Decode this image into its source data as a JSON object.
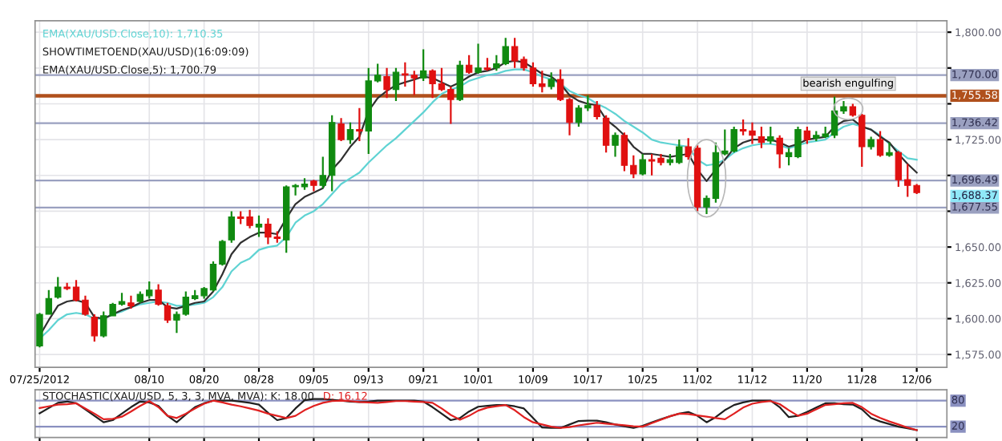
{
  "chart_data": [
    {
      "type": "candlestick",
      "categories": [
        "07/25/2012",
        null,
        null,
        null,
        null,
        null,
        null,
        null,
        null,
        null,
        null,
        null,
        "08/10",
        null,
        null,
        null,
        null,
        null,
        "08/20",
        null,
        null,
        null,
        null,
        null,
        "08/28",
        null,
        null,
        null,
        null,
        null,
        "09/05",
        null,
        null,
        null,
        null,
        null,
        "09/13",
        null,
        null,
        null,
        null,
        null,
        "09/21",
        null,
        null,
        null,
        null,
        null,
        "10/01",
        null,
        null,
        null,
        null,
        null,
        "10/09",
        null,
        null,
        null,
        null,
        null,
        "10/17",
        null,
        null,
        null,
        null,
        null,
        "10/25",
        null,
        null,
        null,
        null,
        null,
        "11/02",
        null,
        null,
        null,
        null,
        null,
        "11/12",
        null,
        null,
        null,
        null,
        null,
        "11/20",
        null,
        null,
        null,
        null,
        null,
        "11/28",
        null,
        null,
        null,
        null,
        null,
        "12/06"
      ],
      "ohlc": [
        [
          1581,
          1604,
          1580,
          1603
        ],
        [
          1603,
          1620,
          1603,
          1614
        ],
        [
          1615,
          1629,
          1614,
          1622
        ],
        [
          1622,
          1625,
          1620,
          1621
        ],
        [
          1622,
          1627,
          1612,
          1613
        ],
        [
          1613,
          1616,
          1602,
          1603
        ],
        [
          1601,
          1603,
          1584,
          1588
        ],
        [
          1588,
          1605,
          1587,
          1602
        ],
        [
          1602,
          1611,
          1602,
          1610
        ],
        [
          1610,
          1618,
          1609,
          1612
        ],
        [
          1611,
          1616,
          1607,
          1609
        ],
        [
          1612,
          1619,
          1611,
          1617
        ],
        [
          1616,
          1626,
          1614,
          1620
        ],
        [
          1620,
          1624,
          1609,
          1610
        ],
        [
          1609,
          1611,
          1597,
          1599
        ],
        [
          1599,
          1605,
          1590,
          1603
        ],
        [
          1603,
          1619,
          1602,
          1615
        ],
        [
          1614,
          1620,
          1613,
          1616
        ],
        [
          1616,
          1622,
          1614,
          1621
        ],
        [
          1620,
          1640,
          1619,
          1638
        ],
        [
          1638,
          1655,
          1637,
          1654
        ],
        [
          1655,
          1675,
          1653,
          1671
        ],
        [
          1671,
          1675,
          1666,
          1670
        ],
        [
          1671,
          1676,
          1663,
          1665
        ],
        [
          1664,
          1672,
          1657,
          1666
        ],
        [
          1666,
          1670,
          1652,
          1657
        ],
        [
          1657,
          1661,
          1653,
          1656
        ],
        [
          1655,
          1693,
          1646,
          1692
        ],
        [
          1692,
          1694,
          1686,
          1693
        ],
        [
          1692,
          1698,
          1690,
          1694
        ],
        [
          1696,
          1697,
          1689,
          1693
        ],
        [
          1693,
          1713,
          1691,
          1700
        ],
        [
          1700,
          1742,
          1689,
          1737
        ],
        [
          1736,
          1740,
          1724,
          1725
        ],
        [
          1725,
          1737,
          1722,
          1732
        ],
        [
          1732,
          1747,
          1724,
          1731
        ],
        [
          1731,
          1775,
          1715,
          1766
        ],
        [
          1766,
          1778,
          1765,
          1770
        ],
        [
          1769,
          1775,
          1754,
          1760
        ],
        [
          1760,
          1775,
          1752,
          1772
        ],
        [
          1771,
          1779,
          1762,
          1770
        ],
        [
          1770,
          1773,
          1756,
          1768
        ],
        [
          1768,
          1788,
          1766,
          1773
        ],
        [
          1773,
          1774,
          1754,
          1764
        ],
        [
          1764,
          1775,
          1759,
          1760
        ],
        [
          1760,
          1762,
          1736,
          1753
        ],
        [
          1753,
          1780,
          1752,
          1777
        ],
        [
          1777,
          1784,
          1771,
          1772
        ],
        [
          1772,
          1792,
          1771,
          1775
        ],
        [
          1775,
          1782,
          1773,
          1774
        ],
        [
          1775,
          1784,
          1773,
          1778
        ],
        [
          1778,
          1796,
          1777,
          1790
        ],
        [
          1790,
          1796,
          1775,
          1780
        ],
        [
          1781,
          1783,
          1773,
          1775
        ],
        [
          1775,
          1779,
          1762,
          1764
        ],
        [
          1764,
          1773,
          1758,
          1762
        ],
        [
          1762,
          1772,
          1760,
          1767
        ],
        [
          1767,
          1774,
          1752,
          1753
        ],
        [
          1753,
          1754,
          1728,
          1737
        ],
        [
          1737,
          1749,
          1734,
          1747
        ],
        [
          1747,
          1756,
          1745,
          1749
        ],
        [
          1749,
          1752,
          1739,
          1741
        ],
        [
          1740,
          1742,
          1716,
          1721
        ],
        [
          1721,
          1730,
          1713,
          1728
        ],
        [
          1728,
          1730,
          1703,
          1707
        ],
        [
          1707,
          1714,
          1698,
          1701
        ],
        [
          1701,
          1715,
          1700,
          1711
        ],
        [
          1711,
          1715,
          1700,
          1710
        ],
        [
          1712,
          1715,
          1707,
          1709
        ],
        [
          1709,
          1715,
          1707,
          1711
        ],
        [
          1709,
          1725,
          1708,
          1720
        ],
        [
          1720,
          1726,
          1711,
          1713
        ],
        [
          1719,
          1721,
          1675,
          1678
        ],
        [
          1678,
          1686,
          1673,
          1684
        ],
        [
          1684,
          1723,
          1681,
          1716
        ],
        [
          1715,
          1732,
          1714,
          1717
        ],
        [
          1717,
          1734,
          1716,
          1732
        ],
        [
          1732,
          1739,
          1728,
          1731
        ],
        [
          1731,
          1737,
          1722,
          1728
        ],
        [
          1727,
          1734,
          1719,
          1723
        ],
        [
          1724,
          1734,
          1722,
          1727
        ],
        [
          1726,
          1728,
          1705,
          1715
        ],
        [
          1713,
          1719,
          1707,
          1716
        ],
        [
          1713,
          1734,
          1712,
          1732
        ],
        [
          1731,
          1734,
          1722,
          1725
        ],
        [
          1726,
          1731,
          1724,
          1728
        ],
        [
          1727,
          1734,
          1726,
          1729
        ],
        [
          1728,
          1755,
          1726,
          1745
        ],
        [
          1745,
          1752,
          1743,
          1748
        ],
        [
          1748,
          1750,
          1741,
          1742
        ],
        [
          1742,
          1743,
          1706,
          1720
        ],
        [
          1720,
          1727,
          1718,
          1725
        ],
        [
          1725,
          1731,
          1713,
          1714
        ],
        [
          1714,
          1723,
          1713,
          1716
        ],
        [
          1716,
          1717,
          1692,
          1697
        ],
        [
          1697,
          1708,
          1685,
          1693
        ],
        [
          1693,
          1694,
          1687,
          1688
        ]
      ],
      "colors": [
        "#108a10",
        "#108a10",
        "#108a10",
        "#e01010",
        "#e01010",
        "#e01010",
        "#e01010",
        "#108a10",
        "#108a10",
        "#108a10",
        "#e01010",
        "#108a10",
        "#108a10",
        "#e01010",
        "#e01010",
        "#108a10",
        "#108a10",
        "#108a10",
        "#108a10",
        "#108a10",
        "#108a10",
        "#108a10",
        "#e01010",
        "#e01010",
        "#108a10",
        "#e01010",
        "#e01010",
        "#108a10",
        "#108a10",
        "#108a10",
        "#e01010",
        "#108a10",
        "#108a10",
        "#e01010",
        "#108a10",
        "#e01010",
        "#108a10",
        "#108a10",
        "#e01010",
        "#108a10",
        "#e01010",
        "#e01010",
        "#108a10",
        "#e01010",
        "#e01010",
        "#e01010",
        "#108a10",
        "#e01010",
        "#108a10",
        "#e01010",
        "#108a10",
        "#108a10",
        "#e01010",
        "#e01010",
        "#e01010",
        "#e01010",
        "#108a10",
        "#e01010",
        "#e01010",
        "#108a10",
        "#108a10",
        "#e01010",
        "#e01010",
        "#108a10",
        "#e01010",
        "#e01010",
        "#108a10",
        "#e01010",
        "#e01010",
        "#108a10",
        "#108a10",
        "#e01010",
        "#e01010",
        "#108a10",
        "#108a10",
        "#108a10",
        "#108a10",
        "#e01010",
        "#e01010",
        "#e01010",
        "#108a10",
        "#e01010",
        "#108a10",
        "#108a10",
        "#e01010",
        "#108a10",
        "#108a10",
        "#108a10",
        "#108a10",
        "#e01010",
        "#e01010",
        "#108a10",
        "#e01010",
        "#108a10",
        "#e01010",
        "#e01010",
        "#e01010"
      ],
      "series": [
        {
          "type": "line",
          "name": "EMA(XAU/USD.Close,10): 1,710.35",
          "color": "#5fd3d3",
          "values": [
            1586,
            1592,
            1599,
            1603,
            1604,
            1603,
            1600,
            1600,
            1603,
            1605,
            1608,
            1610,
            1611,
            1612,
            1611,
            1609,
            1609,
            1610,
            1611,
            1615,
            1622,
            1633,
            1639,
            1642,
            1648,
            1650,
            1651,
            1657,
            1667,
            1672,
            1675,
            1680,
            1687,
            1694,
            1698,
            1702,
            1709,
            1715,
            1721,
            1726,
            1732,
            1738,
            1744,
            1751,
            1757,
            1760,
            1762,
            1766,
            1768,
            1770,
            1771,
            1773,
            1774,
            1774,
            1772,
            1769,
            1767,
            1764,
            1759,
            1756,
            1754,
            1750,
            1747,
            1743,
            1738,
            1734,
            1730,
            1725,
            1723,
            1722,
            1721,
            1720,
            1711,
            1707,
            1708,
            1711,
            1716,
            1719,
            1721,
            1722,
            1722,
            1721,
            1719,
            1721,
            1723,
            1724,
            1725,
            1730,
            1734,
            1736,
            1734,
            1732,
            1728,
            1722,
            1717,
            1712,
            1711
          ]
        },
        {
          "type": "line",
          "name": "EMA(XAU/USD.Close,5): 1,700.79",
          "color": "#303030",
          "values": [
            1588,
            1599,
            1609,
            1612,
            1613,
            1611,
            1601,
            1600,
            1603,
            1606,
            1608,
            1611,
            1613,
            1613,
            1608,
            1607,
            1609,
            1611,
            1612,
            1619,
            1631,
            1645,
            1653,
            1657,
            1660,
            1660,
            1659,
            1670,
            1680,
            1685,
            1688,
            1691,
            1704,
            1711,
            1720,
            1727,
            1745,
            1754,
            1759,
            1763,
            1765,
            1767,
            1769,
            1768,
            1765,
            1762,
            1765,
            1769,
            1772,
            1773,
            1775,
            1779,
            1780,
            1779,
            1775,
            1771,
            1769,
            1764,
            1756,
            1752,
            1750,
            1749,
            1739,
            1734,
            1728,
            1720,
            1715,
            1715,
            1714,
            1713,
            1714,
            1715,
            1704,
            1696,
            1704,
            1711,
            1719,
            1723,
            1725,
            1725,
            1725,
            1723,
            1720,
            1722,
            1725,
            1726,
            1727,
            1734,
            1738,
            1739,
            1734,
            1732,
            1727,
            1723,
            1715,
            1708,
            1702
          ]
        }
      ],
      "ylim": [
        1566,
        1808
      ],
      "yticks": [
        {
          "value": 1575,
          "label": "1,575.00"
        },
        {
          "value": 1600,
          "label": "1,600.00"
        },
        {
          "value": 1625,
          "label": "1,625.00"
        },
        {
          "value": 1650,
          "label": "1,650.00"
        },
        {
          "value": 1675,
          "label": null
        },
        {
          "value": 1700,
          "label": null
        },
        {
          "value": 1725,
          "label": "1,725.00"
        },
        {
          "value": 1750,
          "label": null
        },
        {
          "value": 1775,
          "label": null
        },
        {
          "value": 1800,
          "label": "1,800.00"
        }
      ],
      "ref_lines": [
        {
          "axis": "y",
          "value": 1770.0,
          "label": "1,770.00",
          "color": "#9aa0c0"
        },
        {
          "axis": "y",
          "value": 1755.58,
          "label": "1,755.58",
          "color": "#b0501c"
        },
        {
          "axis": "y",
          "value": 1736.42,
          "label": "1,736.42",
          "color": "#9aa0c0"
        },
        {
          "axis": "y",
          "value": 1696.49,
          "label": "1,696.49",
          "color": "#9aa0c0"
        },
        {
          "axis": "y",
          "value": 1677.55,
          "label": "1,677.55",
          "color": "#9aa0c0"
        }
      ],
      "annotations": [
        "SHOWTIMETOEND(XAU/USD)(16:09:09)",
        "bearish engulfing",
        "1,688.37"
      ],
      "grid": true,
      "legend": "top left"
    },
    {
      "type": "line",
      "title": "STOCHASTIC(XAU/USD, 5, 3, 3, MVA, MVA):",
      "categories": [
        null,
        null,
        null,
        null,
        null,
        null,
        null,
        null,
        null,
        null,
        null,
        null,
        null,
        null,
        null,
        null,
        null,
        null,
        null,
        null,
        null,
        null,
        null,
        null,
        null,
        null,
        null,
        null,
        null,
        null,
        null,
        null,
        null,
        null,
        null,
        null,
        null,
        null,
        null,
        null,
        null,
        null,
        null,
        null,
        null,
        null,
        null,
        null,
        null,
        null,
        null,
        null,
        null,
        null,
        null,
        null,
        null,
        null,
        null,
        null,
        null,
        null,
        null,
        null,
        null,
        null,
        null,
        null,
        null,
        null,
        null,
        null,
        null,
        null,
        null,
        null,
        null,
        null,
        null,
        null,
        null,
        null,
        null,
        null,
        null,
        null,
        null,
        null,
        null,
        null,
        null,
        null,
        null,
        null,
        null,
        null,
        null
      ],
      "series": [
        {
          "name": "K: 18.00",
          "color": "#202020",
          "values": [
            51,
            63,
            75,
            78,
            74,
            60,
            45,
            30,
            35,
            50,
            65,
            78,
            76,
            68,
            45,
            30,
            48,
            65,
            74,
            80,
            80,
            80,
            78,
            75,
            71,
            52,
            35,
            40,
            62,
            81,
            84,
            84,
            82,
            80,
            78,
            77,
            78,
            80,
            80,
            80,
            80,
            80,
            78,
            65,
            50,
            35,
            40,
            55,
            66,
            68,
            70,
            70,
            67,
            62,
            40,
            18,
            17,
            17,
            25,
            33,
            34,
            34,
            30,
            25,
            21,
            17,
            22,
            30,
            37,
            44,
            50,
            54,
            45,
            30,
            42,
            58,
            70,
            76,
            80,
            80,
            80,
            65,
            42,
            45,
            54,
            64,
            74,
            74,
            72,
            71,
            60,
            40,
            32,
            26,
            20,
            16,
            12
          ]
        },
        {
          "name": "D: 16.12",
          "color": "#e02020",
          "values": [
            63,
            67,
            71,
            72,
            74,
            62,
            50,
            37,
            38,
            43,
            55,
            68,
            79,
            65,
            45,
            40,
            50,
            62,
            73,
            80,
            76,
            71,
            67,
            62,
            57,
            50,
            45,
            40,
            45,
            58,
            68,
            75,
            79,
            80,
            79,
            77,
            76,
            75,
            77,
            79,
            79,
            78,
            77,
            75,
            62,
            47,
            36,
            45,
            57,
            64,
            67,
            70,
            58,
            42,
            30,
            25,
            20,
            17,
            19,
            23,
            26,
            29,
            27,
            25,
            23,
            21,
            20,
            28,
            36,
            44,
            50,
            49,
            46,
            43,
            40,
            37,
            50,
            64,
            73,
            77,
            79,
            72,
            58,
            45,
            50,
            60,
            70,
            72,
            74,
            75,
            65,
            50,
            40,
            32,
            25,
            18,
            12
          ]
        }
      ],
      "ylim": [
        -5,
        105
      ],
      "ref_lines": [
        {
          "axis": "y",
          "value": 80,
          "label": "80",
          "color": "#8a90c0"
        },
        {
          "axis": "y",
          "value": 20,
          "label": "20",
          "color": "#8a90c0"
        }
      ],
      "grid": "x"
    }
  ]
}
